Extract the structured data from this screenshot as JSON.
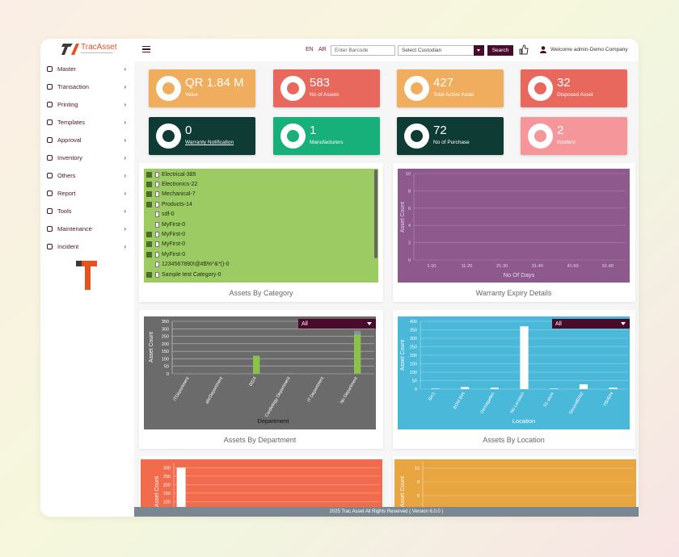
{
  "sidebar": {
    "brand": "TracAsset",
    "menu": [
      "Master",
      "Transaction",
      "Printing",
      "Templates",
      "Approval",
      "Inventory",
      "Others",
      "Report",
      "Tools",
      "Maintenance",
      "Incident"
    ]
  },
  "header": {
    "languages": [
      "EN",
      "AR"
    ],
    "barcode_placeholder": "Enter Barcode",
    "custodian_placeholder": "Select Custodian",
    "search_button": "Search",
    "welcome": "Welcome admin-Demo Company"
  },
  "cards": [
    {
      "value": "QR 1.84 M",
      "label": "Value"
    },
    {
      "value": 583,
      "label": "No of Assets"
    },
    {
      "value": 427,
      "label": "Total Active Asset"
    },
    {
      "value": 32,
      "label": "Disposed Asset"
    },
    {
      "value": 0,
      "label": "Warranty Notification"
    },
    {
      "value": 1,
      "label": "Manufacturers"
    },
    {
      "value": 72,
      "label": "No of Purchase"
    },
    {
      "value": 2,
      "label": "Incident"
    }
  ],
  "category_tree": {
    "title": "Assets By Category",
    "items": [
      "Electrical-385",
      "Electronics-22",
      "Mechanical-7",
      "Products-14",
      "sdf-0",
      "MyFirst-0",
      "MyFirst-0",
      "MyFirst-0",
      "MyFirst-0",
      "1234567890!@#$%^&*()-0",
      "Sample test Category-0"
    ]
  },
  "chart_data": [
    {
      "type": "bar",
      "title": "Warranty Expiry Details",
      "x_label": "No Of Days",
      "y_label": "Asset Count",
      "categories": [
        "1-10",
        "11-20",
        "21-30",
        "31-40",
        "41-50",
        "51-60"
      ],
      "values": [
        0,
        0,
        0,
        0,
        0,
        0
      ],
      "color": "#9ccb63",
      "background": "#8e5a8e",
      "ylim": [
        0,
        10
      ],
      "yticks": [
        0,
        2,
        4,
        6,
        8,
        10
      ],
      "grid": true
    },
    {
      "type": "bar",
      "title": "Assets By Department",
      "x_label": "Department",
      "y_label": "Asset Count",
      "filter": "All",
      "categories": [
        "ITDepartment",
        "abcDepartment",
        "0024",
        "Cardiology Department",
        "IT Department",
        "No Department"
      ],
      "series": [
        {
          "color": "#8bc34a",
          "values": [
            3,
            2,
            120,
            3,
            1,
            265
          ]
        },
        {
          "color": "#5b9bd5",
          "values": [
            0,
            0,
            0,
            0,
            0,
            15
          ]
        },
        {
          "color": "#e8685e",
          "values": [
            0,
            0,
            0,
            0,
            0,
            8
          ]
        }
      ],
      "background": "#6b6b6b",
      "ylim": [
        0,
        350
      ],
      "yticks": [
        0,
        50,
        100,
        150,
        200,
        250,
        300,
        350
      ],
      "grid": true
    },
    {
      "type": "bar",
      "title": "Assets By Location",
      "x_label": "Location",
      "y_label": "Asset Count",
      "filter": "All",
      "categories": [
        "Bin1",
        "BOM BIN",
        "Demagatlen",
        "No Location",
        "S1 store",
        "SecondBIN2",
        "YBriBIN"
      ],
      "values": [
        3,
        12,
        8,
        370,
        3,
        28,
        8
      ],
      "color": "#ffffff",
      "background": "#4ab8d8",
      "ylim": [
        0,
        400
      ],
      "yticks": [
        0,
        50,
        100,
        150,
        200,
        250,
        300,
        350,
        400
      ],
      "grid": true
    },
    {
      "type": "bar",
      "y_label": "Asset Count",
      "categories": [
        null
      ],
      "values": [
        300
      ],
      "color": "#ffffff",
      "background": "#f26b4c",
      "ylim": [
        0,
        330
      ],
      "yticks": [
        100,
        150,
        200,
        250,
        300
      ],
      "grid": true
    },
    {
      "type": "bar",
      "y_label": "Asset Count",
      "categories": [],
      "values": [],
      "color": "#ffffff",
      "background": "#e8a540",
      "ylim": [
        0,
        11
      ],
      "yticks": [
        6,
        8,
        10
      ],
      "grid": true
    }
  ],
  "footer": "2025 Trac Asset All Rights Reserved ( Version 6.0.0 )"
}
